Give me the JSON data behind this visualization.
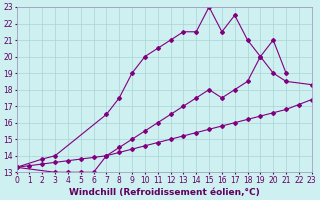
{
  "xlabel": "Windchill (Refroidissement éolien,°C)",
  "bg_color": "#cff0f0",
  "line_color": "#800080",
  "grid_color": "#aad4d4",
  "series1_x": [
    0,
    2,
    3,
    7,
    8,
    9,
    10,
    11,
    12,
    13,
    14,
    15,
    16,
    17,
    18,
    19,
    20,
    21,
    23
  ],
  "series1_y": [
    13.3,
    13.8,
    14.0,
    16.5,
    17.5,
    19.0,
    20.0,
    20.5,
    21.0,
    21.5,
    21.5,
    23.0,
    21.5,
    22.5,
    21.0,
    20.0,
    19.0,
    18.5,
    18.3
  ],
  "series2_x": [
    0,
    3,
    4,
    5,
    6,
    7,
    8,
    9,
    10,
    11,
    12,
    13,
    14,
    15,
    16,
    17,
    18,
    19,
    20,
    21
  ],
  "series2_y": [
    13.3,
    13.0,
    13.0,
    13.0,
    13.0,
    14.0,
    14.5,
    15.0,
    15.5,
    16.0,
    16.5,
    17.0,
    17.5,
    18.0,
    17.5,
    18.0,
    18.5,
    20.0,
    21.0,
    19.0
  ],
  "series3_x": [
    0,
    1,
    2,
    3,
    4,
    5,
    6,
    7,
    8,
    9,
    10,
    11,
    12,
    13,
    14,
    15,
    16,
    17,
    18,
    19,
    20,
    21,
    22,
    23
  ],
  "series3_y": [
    13.3,
    13.4,
    13.5,
    13.6,
    13.7,
    13.8,
    13.9,
    14.0,
    14.2,
    14.4,
    14.6,
    14.8,
    15.0,
    15.2,
    15.4,
    15.6,
    15.8,
    16.0,
    16.2,
    16.4,
    16.6,
    16.8,
    17.1,
    17.4
  ],
  "xlim": [
    0,
    23
  ],
  "ylim": [
    13,
    23
  ],
  "xticks": [
    0,
    1,
    2,
    3,
    4,
    5,
    6,
    7,
    8,
    9,
    10,
    11,
    12,
    13,
    14,
    15,
    16,
    17,
    18,
    19,
    20,
    21,
    22,
    23
  ],
  "yticks": [
    13,
    14,
    15,
    16,
    17,
    18,
    19,
    20,
    21,
    22,
    23
  ],
  "marker": "D",
  "markersize": 2.0,
  "linewidth": 0.8,
  "xlabel_fontsize": 6.5,
  "tick_fontsize": 5.5
}
